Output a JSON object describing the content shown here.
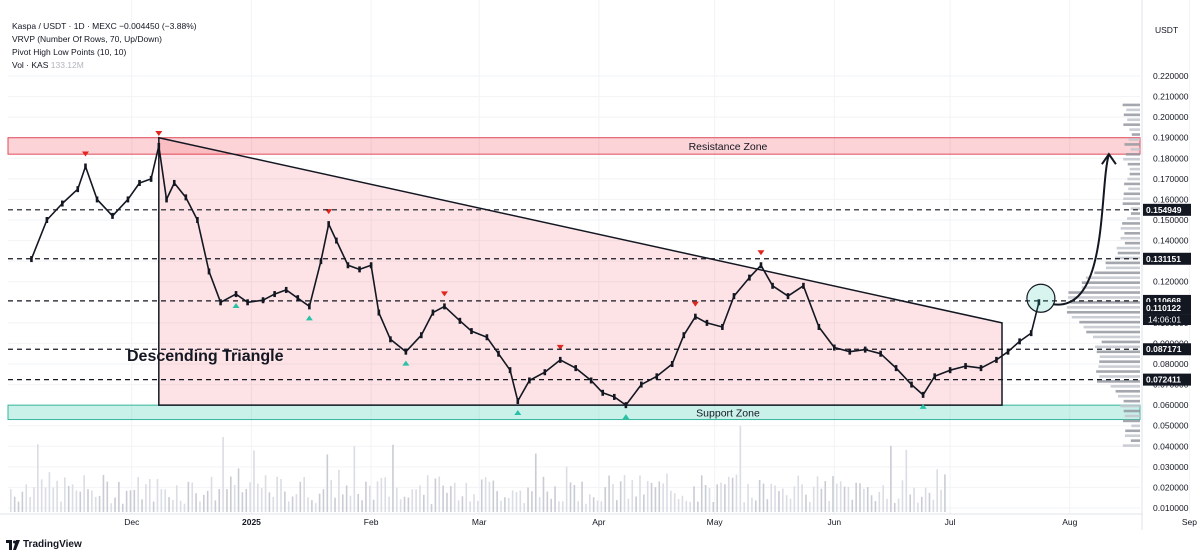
{
  "legend": {
    "symbol_line": "Kaspa / USDT · 1D · MEXC",
    "change": "−0.004450 (−3.88%)",
    "vrvp": "VRVP (Number Of Rows, 70, Up/Down)",
    "pivot": "Pivot High Low Points (10, 10)",
    "vol_label": "Vol · KAS",
    "vol_value": "133.12M"
  },
  "brand": "TradingView",
  "chart_data": {
    "type": "line",
    "title": "",
    "currency": "USDT",
    "y_ticks": [
      "0.220000",
      "0.210000",
      "0.200000",
      "0.190000",
      "0.180000",
      "0.170000",
      "0.160000",
      "0.150000",
      "0.140000",
      "0.130000",
      "0.120000",
      "0.100000",
      "0.090000",
      "0.080000",
      "0.070000",
      "0.060000",
      "0.050000",
      "0.040000",
      "0.030000",
      "0.020000",
      "0.010000"
    ],
    "x_ticks": [
      "Dec",
      "2025",
      "Feb",
      "Mar",
      "Apr",
      "May",
      "Jun",
      "Jul",
      "Aug",
      "Sep"
    ],
    "price_labels": [
      {
        "value": 0.154949,
        "text": "0.154949"
      },
      {
        "value": 0.131151,
        "text": "0.131151"
      },
      {
        "value": 0.110668,
        "text": "0.110668"
      },
      {
        "value": 0.110122,
        "text": "0.110122"
      },
      {
        "value": 0.087171,
        "text": "0.087171"
      },
      {
        "value": 0.072411,
        "text": "0.072411"
      }
    ],
    "countdown": "14:06:01",
    "zones": [
      {
        "name": "Resistance Zone",
        "low": 0.182,
        "high": 0.19
      },
      {
        "name": "Support Zone",
        "low": 0.053,
        "high": 0.06
      }
    ],
    "pattern_label": "Descending Triangle",
    "series_close": [
      [
        "2024-11-05",
        0.131
      ],
      [
        "2024-11-09",
        0.15
      ],
      [
        "2024-11-13",
        0.158
      ],
      [
        "2024-11-17",
        0.165
      ],
      [
        "2024-11-19",
        0.176
      ],
      [
        "2024-11-22",
        0.16
      ],
      [
        "2024-11-26",
        0.152
      ],
      [
        "2024-11-30",
        0.16
      ],
      [
        "2024-12-03",
        0.168
      ],
      [
        "2024-12-06",
        0.17
      ],
      [
        "2024-12-08",
        0.186
      ],
      [
        "2024-12-10",
        0.16
      ],
      [
        "2024-12-12",
        0.168
      ],
      [
        "2024-12-15",
        0.161
      ],
      [
        "2024-12-18",
        0.15
      ],
      [
        "2024-12-21",
        0.125
      ],
      [
        "2024-12-24",
        0.11
      ],
      [
        "2024-12-28",
        0.114
      ],
      [
        "2024-12-31",
        0.11
      ],
      [
        "2025-01-04",
        0.111
      ],
      [
        "2025-01-07",
        0.114
      ],
      [
        "2025-01-10",
        0.116
      ],
      [
        "2025-01-13",
        0.112
      ],
      [
        "2025-01-16",
        0.108
      ],
      [
        "2025-01-19",
        0.13
      ],
      [
        "2025-01-21",
        0.148
      ],
      [
        "2025-01-23",
        0.14
      ],
      [
        "2025-01-26",
        0.128
      ],
      [
        "2025-01-29",
        0.126
      ],
      [
        "2025-02-01",
        0.128
      ],
      [
        "2025-02-03",
        0.105
      ],
      [
        "2025-02-06",
        0.092
      ],
      [
        "2025-02-10",
        0.086
      ],
      [
        "2025-02-14",
        0.094
      ],
      [
        "2025-02-17",
        0.105
      ],
      [
        "2025-02-20",
        0.108
      ],
      [
        "2025-02-24",
        0.101
      ],
      [
        "2025-02-27",
        0.096
      ],
      [
        "2025-03-03",
        0.093
      ],
      [
        "2025-03-06",
        0.085
      ],
      [
        "2025-03-09",
        0.077
      ],
      [
        "2025-03-11",
        0.062
      ],
      [
        "2025-03-14",
        0.072
      ],
      [
        "2025-03-18",
        0.076
      ],
      [
        "2025-03-22",
        0.082
      ],
      [
        "2025-03-26",
        0.078
      ],
      [
        "2025-03-30",
        0.072
      ],
      [
        "2025-04-02",
        0.066
      ],
      [
        "2025-04-05",
        0.064
      ],
      [
        "2025-04-08",
        0.06
      ],
      [
        "2025-04-12",
        0.07
      ],
      [
        "2025-04-16",
        0.074
      ],
      [
        "2025-04-20",
        0.08
      ],
      [
        "2025-04-23",
        0.094
      ],
      [
        "2025-04-26",
        0.103
      ],
      [
        "2025-04-29",
        0.1
      ],
      [
        "2025-05-03",
        0.098
      ],
      [
        "2025-05-06",
        0.113
      ],
      [
        "2025-05-10",
        0.122
      ],
      [
        "2025-05-13",
        0.128
      ],
      [
        "2025-05-16",
        0.118
      ],
      [
        "2025-05-20",
        0.113
      ],
      [
        "2025-05-24",
        0.118
      ],
      [
        "2025-05-28",
        0.098
      ],
      [
        "2025-06-01",
        0.088
      ],
      [
        "2025-06-05",
        0.086
      ],
      [
        "2025-06-09",
        0.087
      ],
      [
        "2025-06-13",
        0.085
      ],
      [
        "2025-06-17",
        0.078
      ],
      [
        "2025-06-21",
        0.07
      ],
      [
        "2025-06-24",
        0.065
      ],
      [
        "2025-06-27",
        0.074
      ],
      [
        "2025-07-01",
        0.077
      ],
      [
        "2025-07-05",
        0.079
      ],
      [
        "2025-07-09",
        0.078
      ],
      [
        "2025-07-13",
        0.082
      ],
      [
        "2025-07-16",
        0.086
      ],
      [
        "2025-07-19",
        0.091
      ],
      [
        "2025-07-22",
        0.095
      ],
      [
        "2025-07-24",
        0.11
      ]
    ],
    "pivot_highs": [
      "2024-11-19",
      "2024-12-08",
      "2025-01-21",
      "2025-02-20",
      "2025-03-22",
      "2025-04-26",
      "2025-05-13"
    ],
    "pivot_lows": [
      "2024-12-28",
      "2025-01-16",
      "2025-02-10",
      "2025-03-11",
      "2025-04-08",
      "2025-06-24"
    ]
  }
}
